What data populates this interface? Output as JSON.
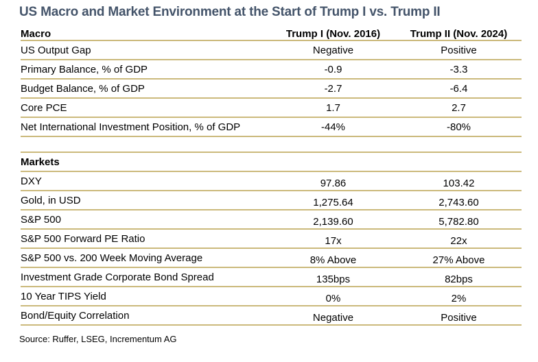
{
  "chart_data": {
    "type": "table",
    "title": "US Macro and Market Environment at the Start of Trump I vs. Trump II",
    "columns": [
      "Macro",
      "Trump I (Nov. 2016)",
      "Trump II (Nov. 2024)"
    ],
    "macro_rows": [
      {
        "label": "US Output Gap",
        "values": [
          "Negative",
          "Positive"
        ]
      },
      {
        "label": "Primary Balance, % of GDP",
        "values": [
          "-0.9",
          "-3.3"
        ]
      },
      {
        "label": "Budget Balance, % of GDP",
        "values": [
          "-2.7",
          "-6.4"
        ]
      },
      {
        "label": "Core PCE",
        "values": [
          "1.7",
          "2.7"
        ]
      },
      {
        "label": "Net International Investment Position, % of GDP",
        "values": [
          "-44%",
          "-80%"
        ]
      }
    ],
    "markets_label": "Markets",
    "markets_rows": [
      {
        "label": "DXY",
        "values": [
          "97.86",
          "103.42"
        ]
      },
      {
        "label": "Gold, in USD",
        "values": [
          "1,275.64",
          "2,743.60"
        ]
      },
      {
        "label": "S&P 500",
        "values": [
          "2,139.60",
          "5,782.80"
        ]
      },
      {
        "label": "S&P 500 Forward PE Ratio",
        "values": [
          "17x",
          "22x"
        ]
      },
      {
        "label": "S&P 500 vs. 200 Week Moving Average",
        "values": [
          "8% Above",
          "27% Above"
        ]
      },
      {
        "label": "Investment Grade Corporate Bond Spread",
        "values": [
          "135bps",
          "82bps"
        ]
      },
      {
        "label": "10 Year TIPS Yield",
        "values": [
          "0%",
          "2%"
        ]
      },
      {
        "label": "Bond/Equity Correlation",
        "values": [
          "Negative",
          "Positive"
        ]
      }
    ],
    "source": "Source: Ruffer, LSEG, Incrementum AG",
    "layout": {
      "grid": "horizontal gold rules between rows",
      "legend_position": "none"
    },
    "colors": {
      "title_text": "#44546A",
      "row_rule": "#CBB97B",
      "body_text": "#000000",
      "background": "#FFFFFF"
    }
  }
}
